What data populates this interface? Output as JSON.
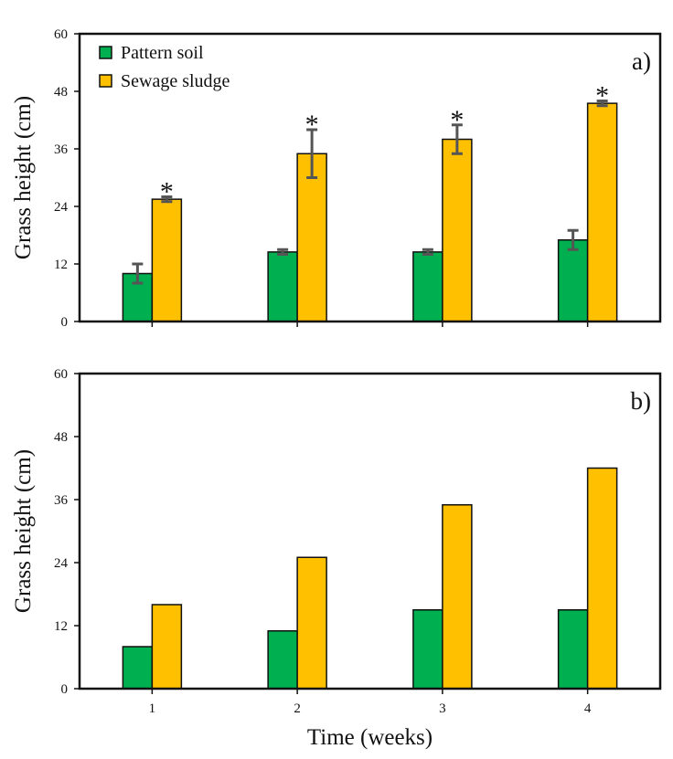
{
  "chart_data": [
    {
      "type": "bar",
      "panel_label": "a)",
      "ylabel": "Grass height (cm)",
      "xlabel": "",
      "ylim": [
        0,
        60
      ],
      "yticks": [
        0,
        12,
        24,
        36,
        48,
        60
      ],
      "categories": [
        "1",
        "2",
        "3",
        "4"
      ],
      "show_xticklabels": false,
      "legend": "top-left",
      "series": [
        {
          "name": "Pattern soil",
          "color": "#00b050",
          "values": [
            10,
            14.5,
            14.5,
            17
          ],
          "errors": [
            2,
            0.5,
            0.5,
            2
          ]
        },
        {
          "name": "Sewage sludge",
          "color": "#ffc000",
          "values": [
            25.5,
            35,
            38,
            45.5
          ],
          "errors": [
            0.5,
            5,
            3,
            0.5
          ],
          "significance": [
            "*",
            "*",
            "*",
            "*"
          ]
        }
      ]
    },
    {
      "type": "bar",
      "panel_label": "b)",
      "ylabel": "Grass height (cm)",
      "xlabel": "Time (weeks)",
      "ylim": [
        0,
        60
      ],
      "yticks": [
        0,
        12,
        24,
        36,
        48,
        60
      ],
      "categories": [
        "1",
        "2",
        "3",
        "4"
      ],
      "show_xticklabels": true,
      "series": [
        {
          "name": "Pattern soil",
          "color": "#00b050",
          "values": [
            8,
            11,
            15,
            15
          ]
        },
        {
          "name": "Sewage sludge",
          "color": "#ffc000",
          "values": [
            16,
            25,
            35,
            42
          ]
        }
      ]
    }
  ]
}
